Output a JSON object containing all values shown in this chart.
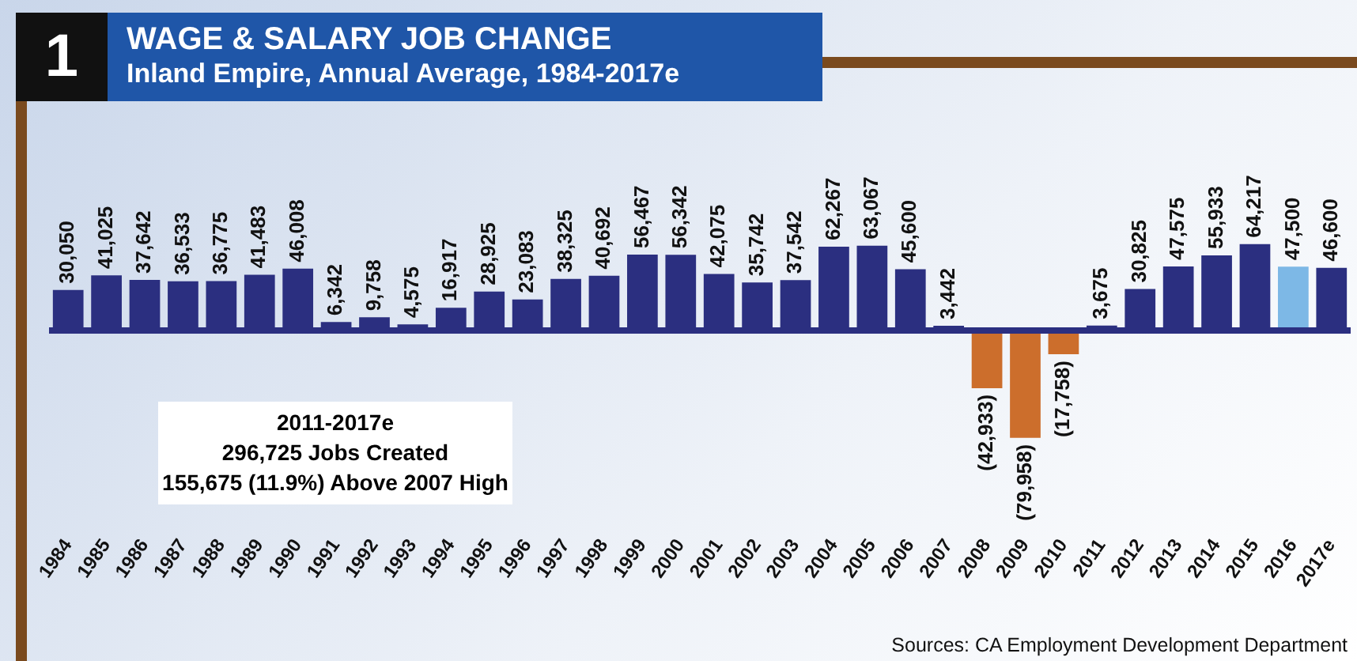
{
  "chart_data": {
    "type": "bar",
    "title": "WAGE & SALARY JOB CHANGE",
    "subtitle": "Inland Empire, Annual Average, 1984-2017e",
    "categories": [
      "1984",
      "1985",
      "1986",
      "1987",
      "1988",
      "1989",
      "1990",
      "1991",
      "1992",
      "1993",
      "1994",
      "1995",
      "1996",
      "1997",
      "1998",
      "1999",
      "2000",
      "2001",
      "2002",
      "2003",
      "2004",
      "2005",
      "2006",
      "2007",
      "2008",
      "2009",
      "2010",
      "2011",
      "2012",
      "2013",
      "2014",
      "2015",
      "2016",
      "2017e"
    ],
    "values": [
      30050,
      41025,
      37642,
      36533,
      36775,
      41483,
      46008,
      6342,
      9758,
      4575,
      16917,
      28925,
      23083,
      38325,
      40692,
      56467,
      56342,
      42075,
      35742,
      37542,
      62267,
      63067,
      45600,
      3442,
      -42933,
      -79958,
      -17758,
      3675,
      30825,
      47575,
      55933,
      64217,
      47500,
      46600
    ],
    "colors": [
      "#2b2f80",
      "#2b2f80",
      "#2b2f80",
      "#2b2f80",
      "#2b2f80",
      "#2b2f80",
      "#2b2f80",
      "#2b2f80",
      "#2b2f80",
      "#2b2f80",
      "#2b2f80",
      "#2b2f80",
      "#2b2f80",
      "#2b2f80",
      "#2b2f80",
      "#2b2f80",
      "#2b2f80",
      "#2b2f80",
      "#2b2f80",
      "#2b2f80",
      "#2b2f80",
      "#2b2f80",
      "#2b2f80",
      "#2b2f80",
      "#cc6e2c",
      "#cc6e2c",
      "#cc6e2c",
      "#2b2f80",
      "#2b2f80",
      "#2b2f80",
      "#2b2f80",
      "#2b2f80",
      "#7db8e6",
      "#2b2f80"
    ],
    "value_labels": [
      "30,050",
      "41,025",
      "37,642",
      "36,533",
      "36,775",
      "41,483",
      "46,008",
      "6,342",
      "9,758",
      "4,575",
      "16,917",
      "28,925",
      "23,083",
      "38,325",
      "40,692",
      "56,467",
      "56,342",
      "42,075",
      "35,742",
      "37,542",
      "62,267",
      "63,067",
      "45,600",
      "3,442",
      "(42,933)",
      "(79,958)",
      "(17,758)",
      "3,675",
      "30,825",
      "47,575",
      "55,933",
      "64,217",
      "47,500",
      "46,600"
    ],
    "ref_lines": [
      {
        "axis": "y",
        "value": 0,
        "color": "#2b2f80"
      }
    ],
    "tick_labels": "x",
    "grid": false,
    "legend": false,
    "annotations": [
      "1",
      "2011-2017e\n296,725 Jobs Created\n155,675 (11.9%) Above 2007 High",
      "Sources:  CA Employment Development Department"
    ]
  }
}
